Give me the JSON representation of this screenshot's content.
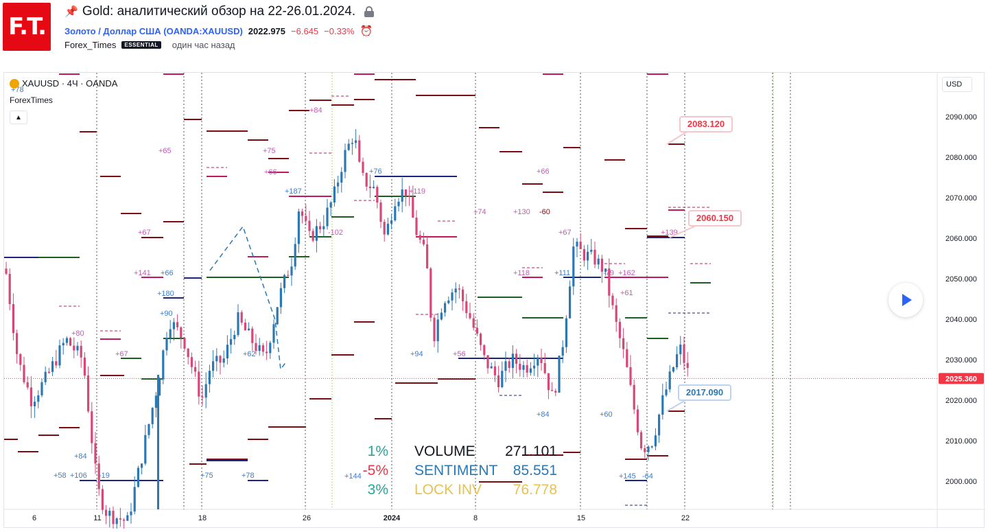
{
  "header": {
    "logo_text": "F.T.",
    "title": "Gold: аналитический обзор на 22-26.01.2024.",
    "symbol_name": "Золото / Доллар США",
    "symbol_code": "(OANDA:XAUUSD)",
    "price": "2022.975",
    "change": "−6.645",
    "change_pct": "−0.33%",
    "author": "Forex_Times",
    "badge": "ESSENTIAL",
    "posted": "один час назад"
  },
  "chart": {
    "legend_title": "XAUUSD · 4Ч · OANDA",
    "indicator_name": "ForexTimes",
    "currency": "USD",
    "last_price_label": "2025.360",
    "callouts": {
      "upper1": "2083.120",
      "upper2": "2060.150",
      "lower": "2017.090"
    },
    "stats": [
      {
        "pct": "1%",
        "label": "VOLUME",
        "value": "271.101"
      },
      {
        "pct": "-5%",
        "label": "SENTIMENT",
        "value": "85.551"
      },
      {
        "pct": "3%",
        "label": "LOCK INV",
        "value": "76.778"
      }
    ],
    "colors": {
      "up_candle": "#2a78b4",
      "down_candle": "#d6477a",
      "level_dark": "#7b0d12",
      "level_blue": "#1a237e",
      "level_green": "#1b5e20",
      "level_pink": "#c2185b",
      "stat_green": "#26a69a",
      "stat_red": "#f23645",
      "stat_blue": "#2a78b4",
      "stat_gold": "#e8c250"
    }
  },
  "chart_data": {
    "type": "candlestick",
    "ylim": [
      1995,
      2103
    ],
    "y_ticks": [
      "2000.000",
      "2010.000",
      "2020.000",
      "2030.000",
      "2040.000",
      "2050.000",
      "2060.000",
      "2070.000",
      "2080.000",
      "2090.000"
    ],
    "x_ticks": [
      "6",
      "11",
      "18",
      "26",
      "2024",
      "8",
      "15",
      "22"
    ],
    "last_price": 2025.36,
    "level_labels": [
      "+78",
      "+84",
      "+65",
      "+75",
      "+66",
      "+67",
      "+141",
      "+66",
      "+180",
      "+90",
      "+80",
      "+67",
      "+58",
      "+62",
      "+84",
      "+58",
      "+106",
      "-19",
      "+75",
      "+78",
      "+187",
      "-102",
      "+76",
      "+119",
      "+74",
      "+130",
      "-60",
      "+66",
      "+67",
      "+118",
      "+111",
      "-79",
      "+162",
      "+61",
      "+94",
      "+56",
      "+84",
      "+60",
      "+145",
      "-64",
      "+144",
      "+139"
    ]
  }
}
